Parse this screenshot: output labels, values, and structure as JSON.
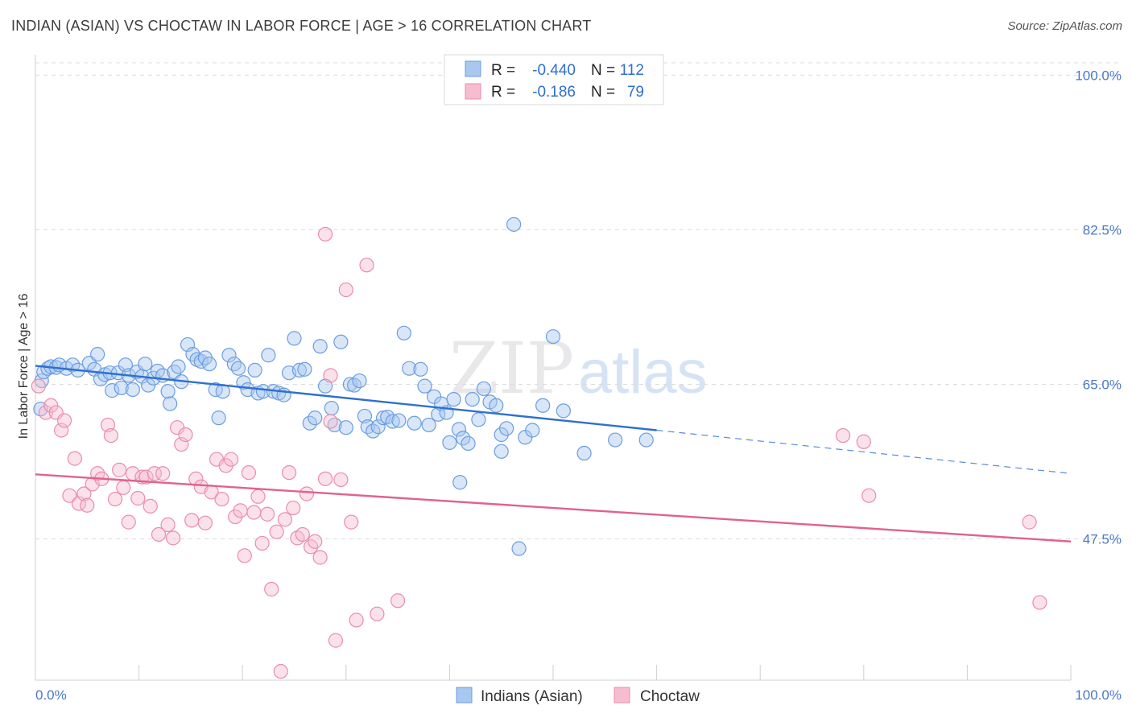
{
  "header": {
    "title": "INDIAN (ASIAN) VS CHOCTAW IN LABOR FORCE | AGE > 16 CORRELATION CHART",
    "source": "Source: ZipAtlas.com"
  },
  "watermark": {
    "zip": "ZIP",
    "atlas": "atlas"
  },
  "legend_top": [
    {
      "r_label": "R =",
      "r_value": "-0.440",
      "n_label": "N =",
      "n_value": "112"
    },
    {
      "r_label": "R =",
      "r_value": "-0.186",
      "n_label": "N =",
      "n_value": "79"
    }
  ],
  "legend_bottom": [
    "Indians (Asian)",
    "Choctaw"
  ],
  "colors": {
    "blue_fill": "#a9c8ef",
    "blue_stroke": "#6b9de0",
    "blue_line": "#2f6fcf",
    "pink_fill": "#f6bcd0",
    "pink_stroke": "#ea8cae",
    "pink_line": "#e0628f",
    "grid": "#dcdcdc",
    "axis_text": "#4a78c9",
    "value_text": "#2f6fcf"
  },
  "chart_data": {
    "type": "scatter",
    "title": "INDIAN (ASIAN) VS CHOCTAW IN LABOR FORCE | AGE > 16 CORRELATION CHART",
    "xlabel": "",
    "ylabel": "In Labor Force | Age > 16",
    "xlim": [
      0,
      100
    ],
    "ylim": [
      31.5,
      102.5
    ],
    "x_tick_labels": [
      "0.0%",
      "100.0%"
    ],
    "y_ticks": [
      47.5,
      65.0,
      82.5,
      100.0
    ],
    "y_tick_labels": [
      "47.5%",
      "65.0%",
      "82.5%",
      "100.0%"
    ],
    "grid": true,
    "legend_position": "top-center",
    "series": [
      {
        "name": "Indians (Asian)",
        "r": -0.44,
        "n": 112,
        "trend": {
          "x0": 0,
          "y0": 67.1,
          "x1": 60,
          "y1": 59.8,
          "dash_x1": 100,
          "dash_y1": 54.9
        },
        "points": [
          [
            0.5,
            62.2
          ],
          [
            0.6,
            65.4
          ],
          [
            0.8,
            66.4
          ],
          [
            1.2,
            66.8
          ],
          [
            1.5,
            67.0
          ],
          [
            2.0,
            66.9
          ],
          [
            2.3,
            67.2
          ],
          [
            3.0,
            66.8
          ],
          [
            3.6,
            67.2
          ],
          [
            4.1,
            66.6
          ],
          [
            5.2,
            67.4
          ],
          [
            5.7,
            66.7
          ],
          [
            6.0,
            68.4
          ],
          [
            6.3,
            65.6
          ],
          [
            6.7,
            66.1
          ],
          [
            7.2,
            66.3
          ],
          [
            7.4,
            64.3
          ],
          [
            8.0,
            66.3
          ],
          [
            8.3,
            64.6
          ],
          [
            8.7,
            67.2
          ],
          [
            9.0,
            66.0
          ],
          [
            9.4,
            64.4
          ],
          [
            9.8,
            66.4
          ],
          [
            10.3,
            65.9
          ],
          [
            10.6,
            67.3
          ],
          [
            10.9,
            64.9
          ],
          [
            11.4,
            65.7
          ],
          [
            11.8,
            66.5
          ],
          [
            12.3,
            66.0
          ],
          [
            12.8,
            64.2
          ],
          [
            13.0,
            62.8
          ],
          [
            13.4,
            66.4
          ],
          [
            13.8,
            67.0
          ],
          [
            14.1,
            65.3
          ],
          [
            14.7,
            69.5
          ],
          [
            15.2,
            68.4
          ],
          [
            15.6,
            67.8
          ],
          [
            16.0,
            67.6
          ],
          [
            16.4,
            68.0
          ],
          [
            16.8,
            67.3
          ],
          [
            17.4,
            64.4
          ],
          [
            17.7,
            61.2
          ],
          [
            18.1,
            64.2
          ],
          [
            18.7,
            68.3
          ],
          [
            19.2,
            67.3
          ],
          [
            19.6,
            66.8
          ],
          [
            20.1,
            65.2
          ],
          [
            20.5,
            64.4
          ],
          [
            21.2,
            66.6
          ],
          [
            21.5,
            64.0
          ],
          [
            22.0,
            64.2
          ],
          [
            22.5,
            68.3
          ],
          [
            23.0,
            64.2
          ],
          [
            23.5,
            64.0
          ],
          [
            24.0,
            63.8
          ],
          [
            24.5,
            66.3
          ],
          [
            25.0,
            70.2
          ],
          [
            25.5,
            66.6
          ],
          [
            26.0,
            66.7
          ],
          [
            26.5,
            60.6
          ],
          [
            27.0,
            61.2
          ],
          [
            27.5,
            69.3
          ],
          [
            28.0,
            64.8
          ],
          [
            28.6,
            62.3
          ],
          [
            28.9,
            60.4
          ],
          [
            29.5,
            69.8
          ],
          [
            30.0,
            60.1
          ],
          [
            30.4,
            65.0
          ],
          [
            30.8,
            64.9
          ],
          [
            31.3,
            65.4
          ],
          [
            31.8,
            61.4
          ],
          [
            32.1,
            60.2
          ],
          [
            32.6,
            59.7
          ],
          [
            33.1,
            60.2
          ],
          [
            33.6,
            61.2
          ],
          [
            34.0,
            61.3
          ],
          [
            34.5,
            60.8
          ],
          [
            35.1,
            60.9
          ],
          [
            35.6,
            70.8
          ],
          [
            36.1,
            66.8
          ],
          [
            36.6,
            60.6
          ],
          [
            37.2,
            66.7
          ],
          [
            37.6,
            64.8
          ],
          [
            38.0,
            60.4
          ],
          [
            38.5,
            63.6
          ],
          [
            38.9,
            61.6
          ],
          [
            39.2,
            62.8
          ],
          [
            39.7,
            61.8
          ],
          [
            40.0,
            58.4
          ],
          [
            40.4,
            63.3
          ],
          [
            40.9,
            59.9
          ],
          [
            41.3,
            58.9
          ],
          [
            41.8,
            58.3
          ],
          [
            42.2,
            63.3
          ],
          [
            42.8,
            61.0
          ],
          [
            43.3,
            64.5
          ],
          [
            43.9,
            63.0
          ],
          [
            44.5,
            62.6
          ],
          [
            45.0,
            59.3
          ],
          [
            45.5,
            60.0
          ],
          [
            46.2,
            83.1
          ],
          [
            46.7,
            46.4
          ],
          [
            47.3,
            59.0
          ],
          [
            48.0,
            59.8
          ],
          [
            49.0,
            62.6
          ],
          [
            50.0,
            70.4
          ],
          [
            51.0,
            62.0
          ],
          [
            53.0,
            57.2
          ],
          [
            56.0,
            58.7
          ],
          [
            59.0,
            58.7
          ],
          [
            41.0,
            53.9
          ],
          [
            45.0,
            57.4
          ]
        ]
      },
      {
        "name": "Choctaw",
        "r": -0.186,
        "n": 79,
        "trend": {
          "x0": 0,
          "y0": 54.8,
          "x1": 100,
          "y1": 47.2
        },
        "points": [
          [
            0.3,
            64.8
          ],
          [
            1.0,
            61.8
          ],
          [
            1.5,
            62.6
          ],
          [
            2.0,
            61.8
          ],
          [
            2.5,
            59.8
          ],
          [
            2.8,
            60.9
          ],
          [
            3.3,
            52.4
          ],
          [
            3.8,
            56.6
          ],
          [
            4.2,
            51.5
          ],
          [
            4.7,
            52.6
          ],
          [
            5.0,
            51.3
          ],
          [
            5.5,
            53.7
          ],
          [
            6.0,
            54.9
          ],
          [
            6.4,
            54.3
          ],
          [
            7.0,
            60.4
          ],
          [
            7.3,
            59.2
          ],
          [
            7.7,
            52.0
          ],
          [
            8.1,
            55.3
          ],
          [
            8.5,
            53.3
          ],
          [
            9.0,
            49.4
          ],
          [
            9.4,
            54.9
          ],
          [
            9.9,
            52.1
          ],
          [
            10.3,
            54.5
          ],
          [
            10.7,
            54.5
          ],
          [
            11.1,
            51.2
          ],
          [
            11.5,
            54.9
          ],
          [
            11.9,
            48.0
          ],
          [
            12.3,
            54.9
          ],
          [
            12.8,
            49.1
          ],
          [
            13.3,
            47.6
          ],
          [
            13.7,
            60.1
          ],
          [
            14.1,
            58.2
          ],
          [
            14.5,
            59.3
          ],
          [
            15.1,
            49.6
          ],
          [
            15.5,
            54.3
          ],
          [
            16.0,
            53.4
          ],
          [
            16.4,
            49.3
          ],
          [
            17.0,
            52.8
          ],
          [
            17.5,
            56.5
          ],
          [
            18.0,
            52.0
          ],
          [
            18.4,
            55.8
          ],
          [
            18.9,
            56.5
          ],
          [
            19.3,
            50.0
          ],
          [
            19.8,
            50.7
          ],
          [
            20.2,
            45.6
          ],
          [
            20.6,
            55.0
          ],
          [
            21.1,
            50.5
          ],
          [
            21.5,
            52.3
          ],
          [
            21.9,
            47.0
          ],
          [
            22.4,
            50.3
          ],
          [
            22.8,
            41.8
          ],
          [
            23.3,
            48.3
          ],
          [
            23.7,
            32.5
          ],
          [
            24.1,
            49.7
          ],
          [
            24.5,
            55.0
          ],
          [
            24.9,
            51.0
          ],
          [
            25.3,
            47.6
          ],
          [
            25.8,
            48.0
          ],
          [
            26.2,
            52.6
          ],
          [
            26.6,
            46.6
          ],
          [
            27.0,
            47.2
          ],
          [
            27.5,
            45.4
          ],
          [
            28.0,
            54.3
          ],
          [
            28.5,
            60.8
          ],
          [
            29.0,
            36.0
          ],
          [
            29.5,
            54.2
          ],
          [
            30.0,
            75.7
          ],
          [
            30.5,
            49.4
          ],
          [
            31.0,
            38.3
          ],
          [
            32.0,
            78.5
          ],
          [
            28.5,
            66.0
          ],
          [
            28.0,
            82.0
          ],
          [
            33.0,
            39.0
          ],
          [
            35.0,
            40.5
          ],
          [
            78.0,
            59.2
          ],
          [
            80.0,
            58.5
          ],
          [
            80.5,
            52.4
          ],
          [
            96.0,
            49.4
          ],
          [
            97.0,
            40.3
          ]
        ]
      }
    ]
  }
}
